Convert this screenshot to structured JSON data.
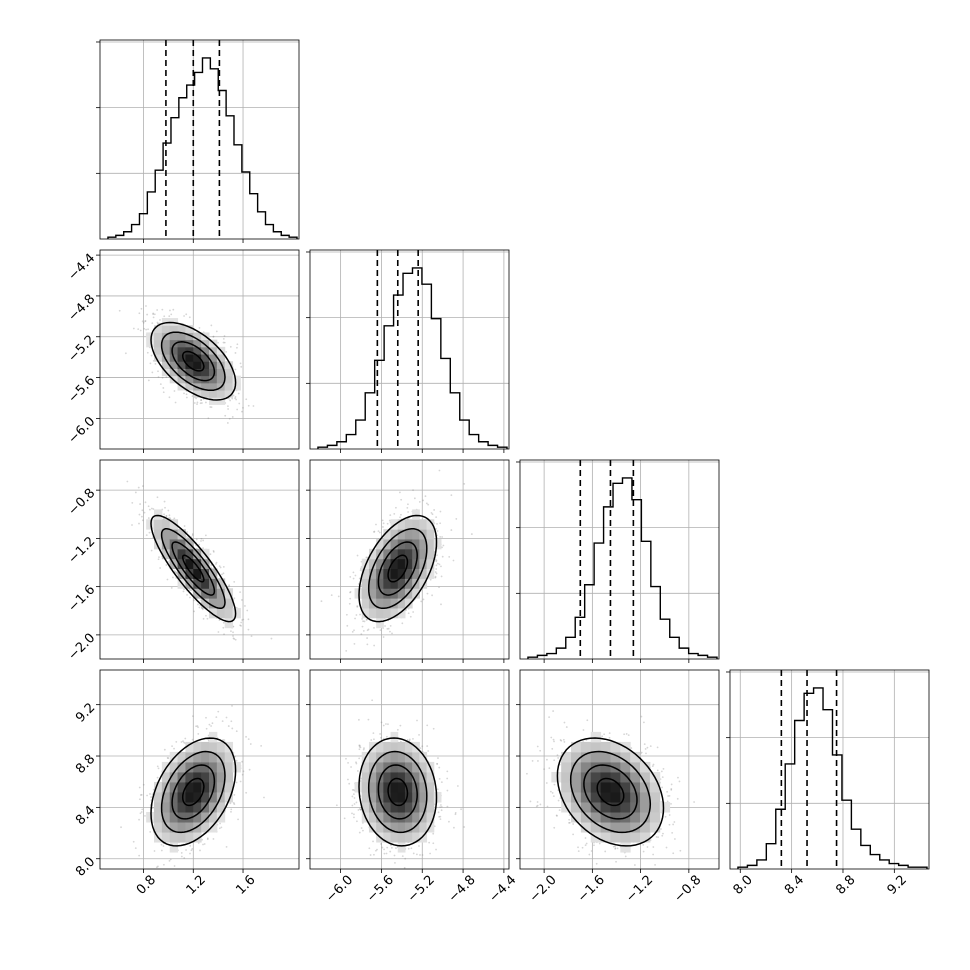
{
  "chart_data": {
    "type": "corner",
    "grid": true,
    "parameters": [
      {
        "index": 0,
        "mean": 1.2,
        "sd": 0.17,
        "q16": 0.98,
        "q50": 1.2,
        "q84": 1.41,
        "range": [
          0.45,
          2.05
        ],
        "ticks": [
          0.8,
          1.2,
          1.6
        ],
        "tick_labels": [
          "0.8",
          "1.2",
          "1.6"
        ]
      },
      {
        "index": 1,
        "mean": -5.44,
        "sd": 0.19,
        "q16": -5.64,
        "q50": -5.44,
        "q84": -5.24,
        "range": [
          -6.3,
          -4.35
        ],
        "ticks": [
          -6.0,
          -5.6,
          -5.2,
          -4.8,
          -4.4
        ],
        "tick_labels": [
          "−6.0",
          "−5.6",
          "−5.2",
          "−4.8",
          "−4.4"
        ]
      },
      {
        "index": 2,
        "mean": -1.45,
        "sd": 0.22,
        "q16": -1.7,
        "q50": -1.45,
        "q84": -1.26,
        "range": [
          -2.2,
          -0.55
        ],
        "ticks": [
          -2.0,
          -1.6,
          -1.2,
          -0.8
        ],
        "tick_labels": [
          "−2.0",
          "−1.6",
          "−1.2",
          "−0.8"
        ]
      },
      {
        "index": 3,
        "mean": 8.52,
        "sd": 0.21,
        "q16": 8.32,
        "q50": 8.52,
        "q84": 8.75,
        "range": [
          7.92,
          9.47
        ],
        "ticks": [
          8.0,
          8.4,
          8.8,
          9.2
        ],
        "tick_labels": [
          "8.0",
          "8.4",
          "8.8",
          "9.2"
        ]
      }
    ],
    "correlations": [
      {
        "row": 1,
        "col": 0,
        "rho": -0.55
      },
      {
        "row": 2,
        "col": 0,
        "rho": -0.85
      },
      {
        "row": 2,
        "col": 1,
        "rho": 0.5
      },
      {
        "row": 3,
        "col": 0,
        "rho": 0.4
      },
      {
        "row": 3,
        "col": 1,
        "rho": -0.1
      },
      {
        "row": 3,
        "col": 2,
        "rho": -0.3
      }
    ],
    "histograms": [
      [
        1,
        2,
        4,
        8,
        14,
        26,
        38,
        53,
        67,
        78,
        85,
        92,
        100,
        94,
        82,
        68,
        52,
        37,
        25,
        15,
        8,
        4,
        2,
        1
      ],
      [
        1,
        2,
        4,
        8,
        16,
        31,
        49,
        68,
        85,
        97,
        100,
        91,
        72,
        50,
        31,
        16,
        8,
        4,
        2,
        1
      ],
      [
        1,
        2,
        3,
        6,
        12,
        23,
        41,
        64,
        84,
        97,
        100,
        88,
        65,
        40,
        22,
        12,
        6,
        3,
        2,
        1
      ],
      [
        1,
        2,
        5,
        14,
        33,
        58,
        82,
        97,
        100,
        88,
        63,
        38,
        22,
        13,
        8,
        5,
        3,
        2,
        1,
        1
      ]
    ],
    "contour_levels_sigma": [
      0.5,
      1.0,
      1.5,
      2.0
    ]
  }
}
